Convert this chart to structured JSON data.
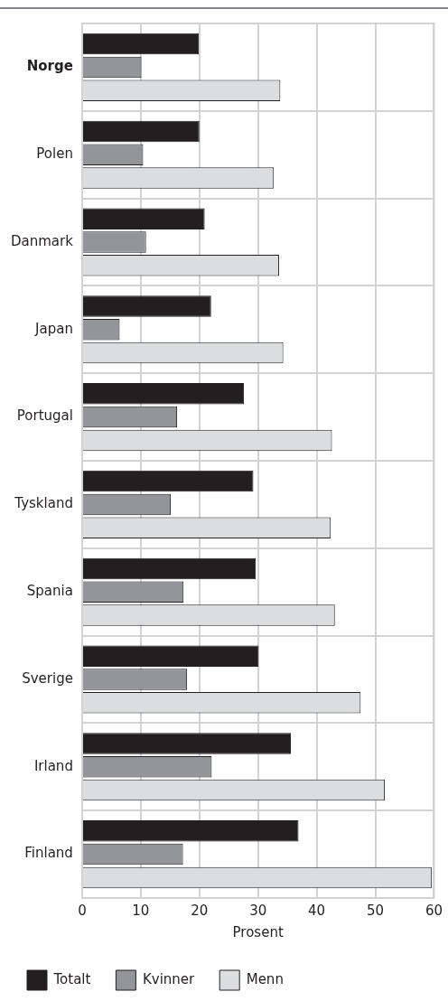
{
  "chart_data": {
    "type": "bar",
    "orientation": "horizontal",
    "xlabel": "Prosent",
    "categories": [
      "Norge",
      "Polen",
      "Danmark",
      "Japan",
      "Portugal",
      "Tyskland",
      "Spania",
      "Sverige",
      "Irland",
      "Finland"
    ],
    "series": [
      {
        "name": "Totalt",
        "color": "#231f20",
        "values": [
          19.9,
          20.0,
          20.9,
          22.0,
          27.6,
          29.2,
          29.6,
          30.1,
          35.6,
          36.9
        ]
      },
      {
        "name": "Kvinner",
        "color": "#939598",
        "values": [
          10.1,
          10.4,
          10.9,
          6.4,
          16.2,
          15.1,
          17.3,
          17.9,
          22.1,
          17.2
        ]
      },
      {
        "name": "Menn",
        "color": "#dcdddf",
        "values": [
          33.8,
          32.7,
          33.6,
          34.3,
          42.6,
          42.4,
          43.1,
          47.5,
          51.6,
          59.6
        ]
      }
    ],
    "xlim": [
      0,
      60
    ],
    "xticks": [
      0,
      10,
      20,
      30,
      40,
      50,
      60
    ],
    "grid": true,
    "legend": "bottom"
  }
}
